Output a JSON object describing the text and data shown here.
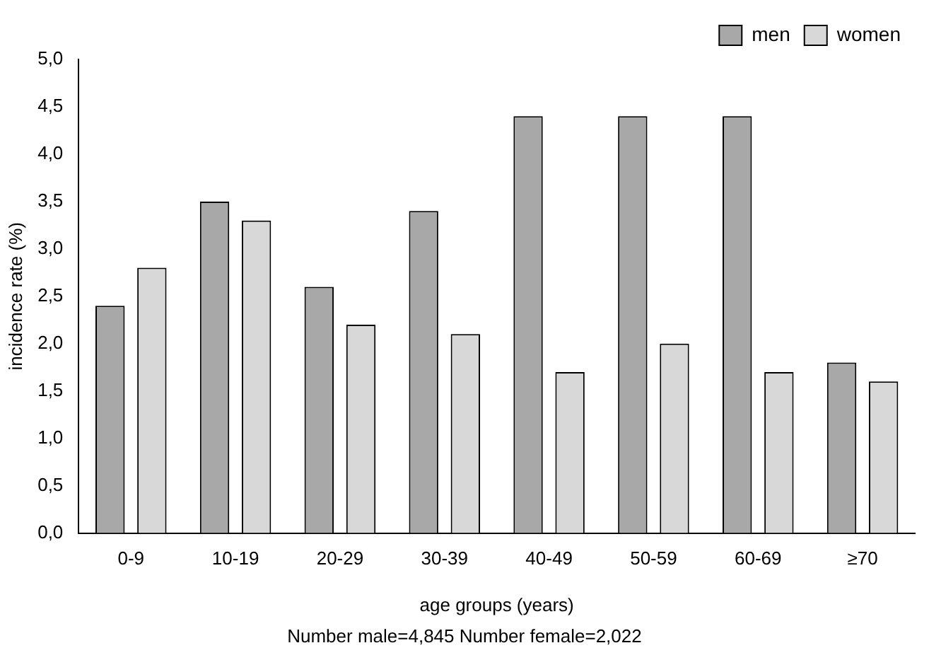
{
  "chart_data": {
    "type": "bar",
    "xlabel": "age groups (years)",
    "ylabel": "incidence rate (%)",
    "categories": [
      "0-9",
      "10-19",
      "20-29",
      "30-39",
      "40-49",
      "50-59",
      "60-69",
      "≥70"
    ],
    "series": [
      {
        "name": "men",
        "color": "#a8a8a8",
        "values": [
          2.4,
          3.5,
          2.6,
          3.4,
          4.4,
          4.4,
          4.4,
          1.8
        ]
      },
      {
        "name": "women",
        "color": "#d8d8d8",
        "values": [
          2.8,
          3.3,
          2.2,
          2.1,
          1.7,
          2.0,
          1.7,
          1.6
        ]
      }
    ],
    "ylim": [
      0,
      5
    ],
    "yticks": [
      {
        "value": 0,
        "label": "0,0"
      },
      {
        "value": 0.5,
        "label": "0,5"
      },
      {
        "value": 1,
        "label": "1,0"
      },
      {
        "value": 1.5,
        "label": "1,5"
      },
      {
        "value": 2,
        "label": "2,0"
      },
      {
        "value": 2.5,
        "label": "2,5"
      },
      {
        "value": 3,
        "label": "3,0"
      },
      {
        "value": 3.5,
        "label": "3,5"
      },
      {
        "value": 4,
        "label": "4,0"
      },
      {
        "value": 4.5,
        "label": "4,5"
      },
      {
        "value": 5,
        "label": "5,0"
      }
    ],
    "grid": false,
    "legend": "top right",
    "annotations": [
      "Number male=4,845  Number female=2,022"
    ]
  }
}
